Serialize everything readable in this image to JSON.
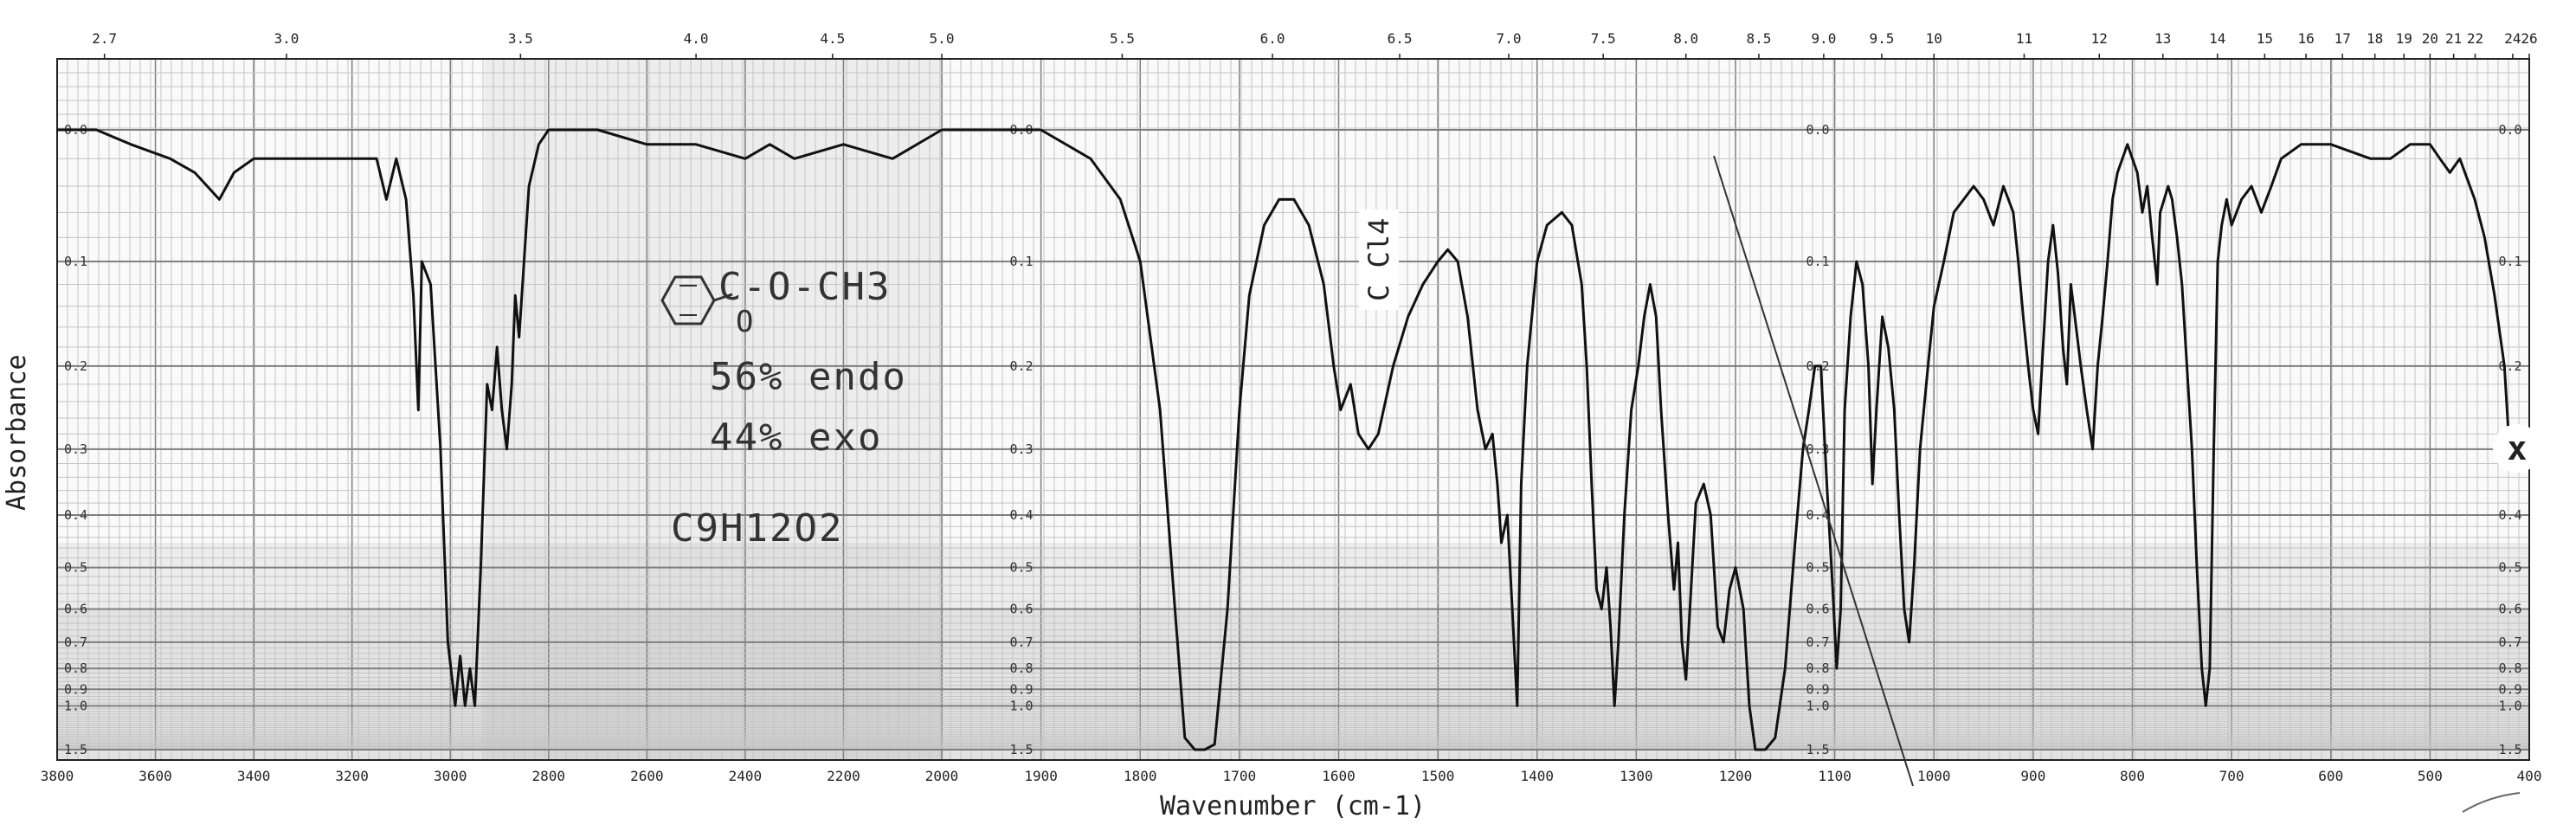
{
  "chart_data": {
    "type": "line",
    "title": "",
    "xlabel": "Wavenumber (cm-1)",
    "ylabel": "Absorbance",
    "x_axis": {
      "min": 3800,
      "max": 400,
      "reversed": true,
      "ticks": [
        3800,
        3600,
        3400,
        3200,
        3000,
        2800,
        2600,
        2400,
        2200,
        2000,
        1900,
        1800,
        1700,
        1600,
        1500,
        1400,
        1300,
        1200,
        1100,
        1000,
        900,
        800,
        700,
        600,
        500,
        400
      ]
    },
    "wavelength_axis": {
      "unit": "micron",
      "ticks": [
        {
          "label": "2.7",
          "value": 2.7
        },
        {
          "label": "3.0",
          "value": 3.0
        },
        {
          "label": "3.5",
          "value": 3.5
        },
        {
          "label": "4.0",
          "value": 4.0
        },
        {
          "label": "4.5",
          "value": 4.5
        },
        {
          "label": "5.0",
          "value": 5.0
        },
        {
          "label": "5.5",
          "value": 5.5
        },
        {
          "label": "6.0",
          "value": 6.0
        },
        {
          "label": "6.5",
          "value": 6.5
        },
        {
          "label": "7.0",
          "value": 7.0
        },
        {
          "label": "7.5",
          "value": 7.5
        },
        {
          "label": "8.0",
          "value": 8.0
        },
        {
          "label": "8.5",
          "value": 8.5
        },
        {
          "label": "9.0",
          "value": 9.0
        },
        {
          "label": "9.5",
          "value": 9.5
        },
        {
          "label": "10",
          "value": 10
        },
        {
          "label": "11",
          "value": 11
        },
        {
          "label": "12",
          "value": 12
        },
        {
          "label": "13",
          "value": 13
        },
        {
          "label": "14",
          "value": 14
        },
        {
          "label": "15",
          "value": 15
        },
        {
          "label": "16",
          "value": 16
        },
        {
          "label": "17",
          "value": 17
        },
        {
          "label": "18",
          "value": 18
        },
        {
          "label": "19",
          "value": 19
        },
        {
          "label": "20",
          "value": 20
        },
        {
          "label": "21",
          "value": 21
        },
        {
          "label": "22",
          "value": 22
        },
        {
          "label": "24",
          "value": 24
        },
        {
          "label": "26",
          "value": 26
        }
      ]
    },
    "y_axis": {
      "scale": "absorbance",
      "ticks": [
        {
          "label": "0.0",
          "value": 0
        },
        {
          "label": "0.1",
          "value": 0.1
        },
        {
          "label": "0.2",
          "value": 0.2
        },
        {
          "label": "0.3",
          "value": 0.3
        },
        {
          "label": "0.4",
          "value": 0.4
        },
        {
          "label": "0.5",
          "value": 0.5
        },
        {
          "label": "0.6",
          "value": 0.6
        },
        {
          "label": "0.7",
          "value": 0.7
        },
        {
          "label": "0.8",
          "value": 0.8
        },
        {
          "label": "0.9",
          "value": 0.9
        },
        {
          "label": "1.0",
          "value": 1.0
        },
        {
          "label": "1.5",
          "value": 1.5
        }
      ]
    },
    "grid": true,
    "series": [
      {
        "points": [
          [
            3800,
            0.0
          ],
          [
            3720,
            0.0
          ],
          [
            3650,
            0.01
          ],
          [
            3570,
            0.02
          ],
          [
            3520,
            0.03
          ],
          [
            3470,
            0.05
          ],
          [
            3440,
            0.03
          ],
          [
            3400,
            0.02
          ],
          [
            3300,
            0.02
          ],
          [
            3200,
            0.02
          ],
          [
            3150,
            0.02
          ],
          [
            3130,
            0.05
          ],
          [
            3110,
            0.02
          ],
          [
            3090,
            0.05
          ],
          [
            3075,
            0.13
          ],
          [
            3065,
            0.25
          ],
          [
            3058,
            0.1
          ],
          [
            3040,
            0.12
          ],
          [
            3020,
            0.3
          ],
          [
            3005,
            0.7
          ],
          [
            2990,
            1.0
          ],
          [
            2980,
            0.75
          ],
          [
            2970,
            1.0
          ],
          [
            2960,
            0.8
          ],
          [
            2950,
            1.0
          ],
          [
            2938,
            0.5
          ],
          [
            2925,
            0.22
          ],
          [
            2915,
            0.25
          ],
          [
            2905,
            0.18
          ],
          [
            2895,
            0.25
          ],
          [
            2885,
            0.3
          ],
          [
            2875,
            0.22
          ],
          [
            2868,
            0.13
          ],
          [
            2860,
            0.17
          ],
          [
            2850,
            0.1
          ],
          [
            2840,
            0.04
          ],
          [
            2820,
            0.01
          ],
          [
            2800,
            0.0
          ],
          [
            2700,
            0.0
          ],
          [
            2600,
            0.01
          ],
          [
            2500,
            0.01
          ],
          [
            2400,
            0.02
          ],
          [
            2350,
            0.01
          ],
          [
            2300,
            0.02
          ],
          [
            2200,
            0.01
          ],
          [
            2100,
            0.02
          ],
          [
            2000,
            0.0
          ],
          [
            1900,
            0.0
          ],
          [
            1850,
            0.02
          ],
          [
            1820,
            0.05
          ],
          [
            1800,
            0.1
          ],
          [
            1780,
            0.25
          ],
          [
            1765,
            0.6
          ],
          [
            1755,
            1.3
          ],
          [
            1745,
            1.5
          ],
          [
            1735,
            1.5
          ],
          [
            1725,
            1.4
          ],
          [
            1712,
            0.6
          ],
          [
            1700,
            0.25
          ],
          [
            1690,
            0.13
          ],
          [
            1675,
            0.07
          ],
          [
            1660,
            0.05
          ],
          [
            1645,
            0.05
          ],
          [
            1630,
            0.07
          ],
          [
            1615,
            0.12
          ],
          [
            1605,
            0.2
          ],
          [
            1598,
            0.25
          ],
          [
            1588,
            0.22
          ],
          [
            1580,
            0.28
          ],
          [
            1570,
            0.3
          ],
          [
            1560,
            0.28
          ],
          [
            1545,
            0.2
          ],
          [
            1530,
            0.15
          ],
          [
            1515,
            0.12
          ],
          [
            1500,
            0.1
          ],
          [
            1490,
            0.09
          ],
          [
            1480,
            0.1
          ],
          [
            1470,
            0.15
          ],
          [
            1460,
            0.25
          ],
          [
            1452,
            0.3
          ],
          [
            1445,
            0.28
          ],
          [
            1440,
            0.35
          ],
          [
            1436,
            0.45
          ],
          [
            1430,
            0.4
          ],
          [
            1425,
            0.6
          ],
          [
            1420,
            1.0
          ],
          [
            1416,
            0.35
          ],
          [
            1410,
            0.2
          ],
          [
            1400,
            0.1
          ],
          [
            1390,
            0.07
          ],
          [
            1375,
            0.06
          ],
          [
            1365,
            0.07
          ],
          [
            1355,
            0.12
          ],
          [
            1350,
            0.2
          ],
          [
            1345,
            0.35
          ],
          [
            1340,
            0.55
          ],
          [
            1335,
            0.6
          ],
          [
            1330,
            0.5
          ],
          [
            1326,
            0.65
          ],
          [
            1322,
            1.0
          ],
          [
            1318,
            0.7
          ],
          [
            1312,
            0.4
          ],
          [
            1305,
            0.25
          ],
          [
            1298,
            0.2
          ],
          [
            1292,
            0.15
          ],
          [
            1286,
            0.12
          ],
          [
            1280,
            0.15
          ],
          [
            1275,
            0.25
          ],
          [
            1268,
            0.4
          ],
          [
            1262,
            0.55
          ],
          [
            1258,
            0.45
          ],
          [
            1254,
            0.7
          ],
          [
            1250,
            0.85
          ],
          [
            1246,
            0.6
          ],
          [
            1240,
            0.38
          ],
          [
            1232,
            0.35
          ],
          [
            1225,
            0.4
          ],
          [
            1218,
            0.65
          ],
          [
            1212,
            0.7
          ],
          [
            1206,
            0.55
          ],
          [
            1200,
            0.5
          ],
          [
            1192,
            0.6
          ],
          [
            1186,
            1.0
          ],
          [
            1180,
            1.5
          ],
          [
            1170,
            1.5
          ],
          [
            1160,
            1.3
          ],
          [
            1150,
            0.8
          ],
          [
            1140,
            0.45
          ],
          [
            1132,
            0.3
          ],
          [
            1126,
            0.25
          ],
          [
            1120,
            0.2
          ],
          [
            1114,
            0.2
          ],
          [
            1108,
            0.35
          ],
          [
            1102,
            0.55
          ],
          [
            1098,
            0.8
          ],
          [
            1094,
            0.6
          ],
          [
            1090,
            0.25
          ],
          [
            1084,
            0.15
          ],
          [
            1078,
            0.1
          ],
          [
            1072,
            0.12
          ],
          [
            1066,
            0.2
          ],
          [
            1062,
            0.35
          ],
          [
            1058,
            0.25
          ],
          [
            1052,
            0.15
          ],
          [
            1046,
            0.18
          ],
          [
            1040,
            0.25
          ],
          [
            1035,
            0.4
          ],
          [
            1030,
            0.6
          ],
          [
            1025,
            0.7
          ],
          [
            1020,
            0.5
          ],
          [
            1014,
            0.3
          ],
          [
            1006,
            0.2
          ],
          [
            1000,
            0.14
          ],
          [
            990,
            0.1
          ],
          [
            980,
            0.06
          ],
          [
            970,
            0.05
          ],
          [
            960,
            0.04
          ],
          [
            950,
            0.05
          ],
          [
            940,
            0.07
          ],
          [
            930,
            0.04
          ],
          [
            920,
            0.06
          ],
          [
            915,
            0.1
          ],
          [
            910,
            0.15
          ],
          [
            905,
            0.2
          ],
          [
            900,
            0.25
          ],
          [
            895,
            0.28
          ],
          [
            890,
            0.18
          ],
          [
            885,
            0.1
          ],
          [
            880,
            0.07
          ],
          [
            875,
            0.11
          ],
          [
            870,
            0.18
          ],
          [
            866,
            0.22
          ],
          [
            862,
            0.12
          ],
          [
            858,
            0.15
          ],
          [
            852,
            0.2
          ],
          [
            846,
            0.25
          ],
          [
            840,
            0.3
          ],
          [
            835,
            0.2
          ],
          [
            830,
            0.15
          ],
          [
            825,
            0.1
          ],
          [
            820,
            0.05
          ],
          [
            815,
            0.03
          ],
          [
            810,
            0.02
          ],
          [
            805,
            0.01
          ],
          [
            800,
            0.02
          ],
          [
            795,
            0.03
          ],
          [
            790,
            0.06
          ],
          [
            785,
            0.04
          ],
          [
            780,
            0.08
          ],
          [
            775,
            0.12
          ],
          [
            772,
            0.06
          ],
          [
            768,
            0.05
          ],
          [
            764,
            0.04
          ],
          [
            760,
            0.05
          ],
          [
            755,
            0.08
          ],
          [
            750,
            0.12
          ],
          [
            745,
            0.2
          ],
          [
            740,
            0.3
          ],
          [
            735,
            0.5
          ],
          [
            730,
            0.8
          ],
          [
            726,
            1.0
          ],
          [
            722,
            0.8
          ],
          [
            718,
            0.3
          ],
          [
            714,
            0.1
          ],
          [
            710,
            0.07
          ],
          [
            705,
            0.05
          ],
          [
            700,
            0.07
          ],
          [
            690,
            0.05
          ],
          [
            680,
            0.04
          ],
          [
            670,
            0.06
          ],
          [
            660,
            0.04
          ],
          [
            650,
            0.02
          ],
          [
            630,
            0.01
          ],
          [
            600,
            0.01
          ],
          [
            560,
            0.02
          ],
          [
            540,
            0.02
          ],
          [
            520,
            0.01
          ],
          [
            500,
            0.01
          ],
          [
            490,
            0.02
          ],
          [
            480,
            0.03
          ],
          [
            470,
            0.02
          ],
          [
            455,
            0.05
          ],
          [
            445,
            0.08
          ],
          [
            435,
            0.13
          ],
          [
            425,
            0.2
          ],
          [
            420,
            0.3
          ]
        ]
      }
    ],
    "annotations": {
      "solvent_band": "C Cl4",
      "marker": "x",
      "handwritten": {
        "structure": "C-O-CH3",
        "carbonyl_oxygen": "O",
        "endo": "56% endo",
        "exo": "44% exo",
        "formula_base": "C9H12O2"
      }
    }
  },
  "colors": {
    "grid_minor": "#c4c4c4",
    "grid_major": "#7e7e7e",
    "trace": "#111111",
    "frame": "#222222"
  },
  "icon": "benzene-ring-icon"
}
